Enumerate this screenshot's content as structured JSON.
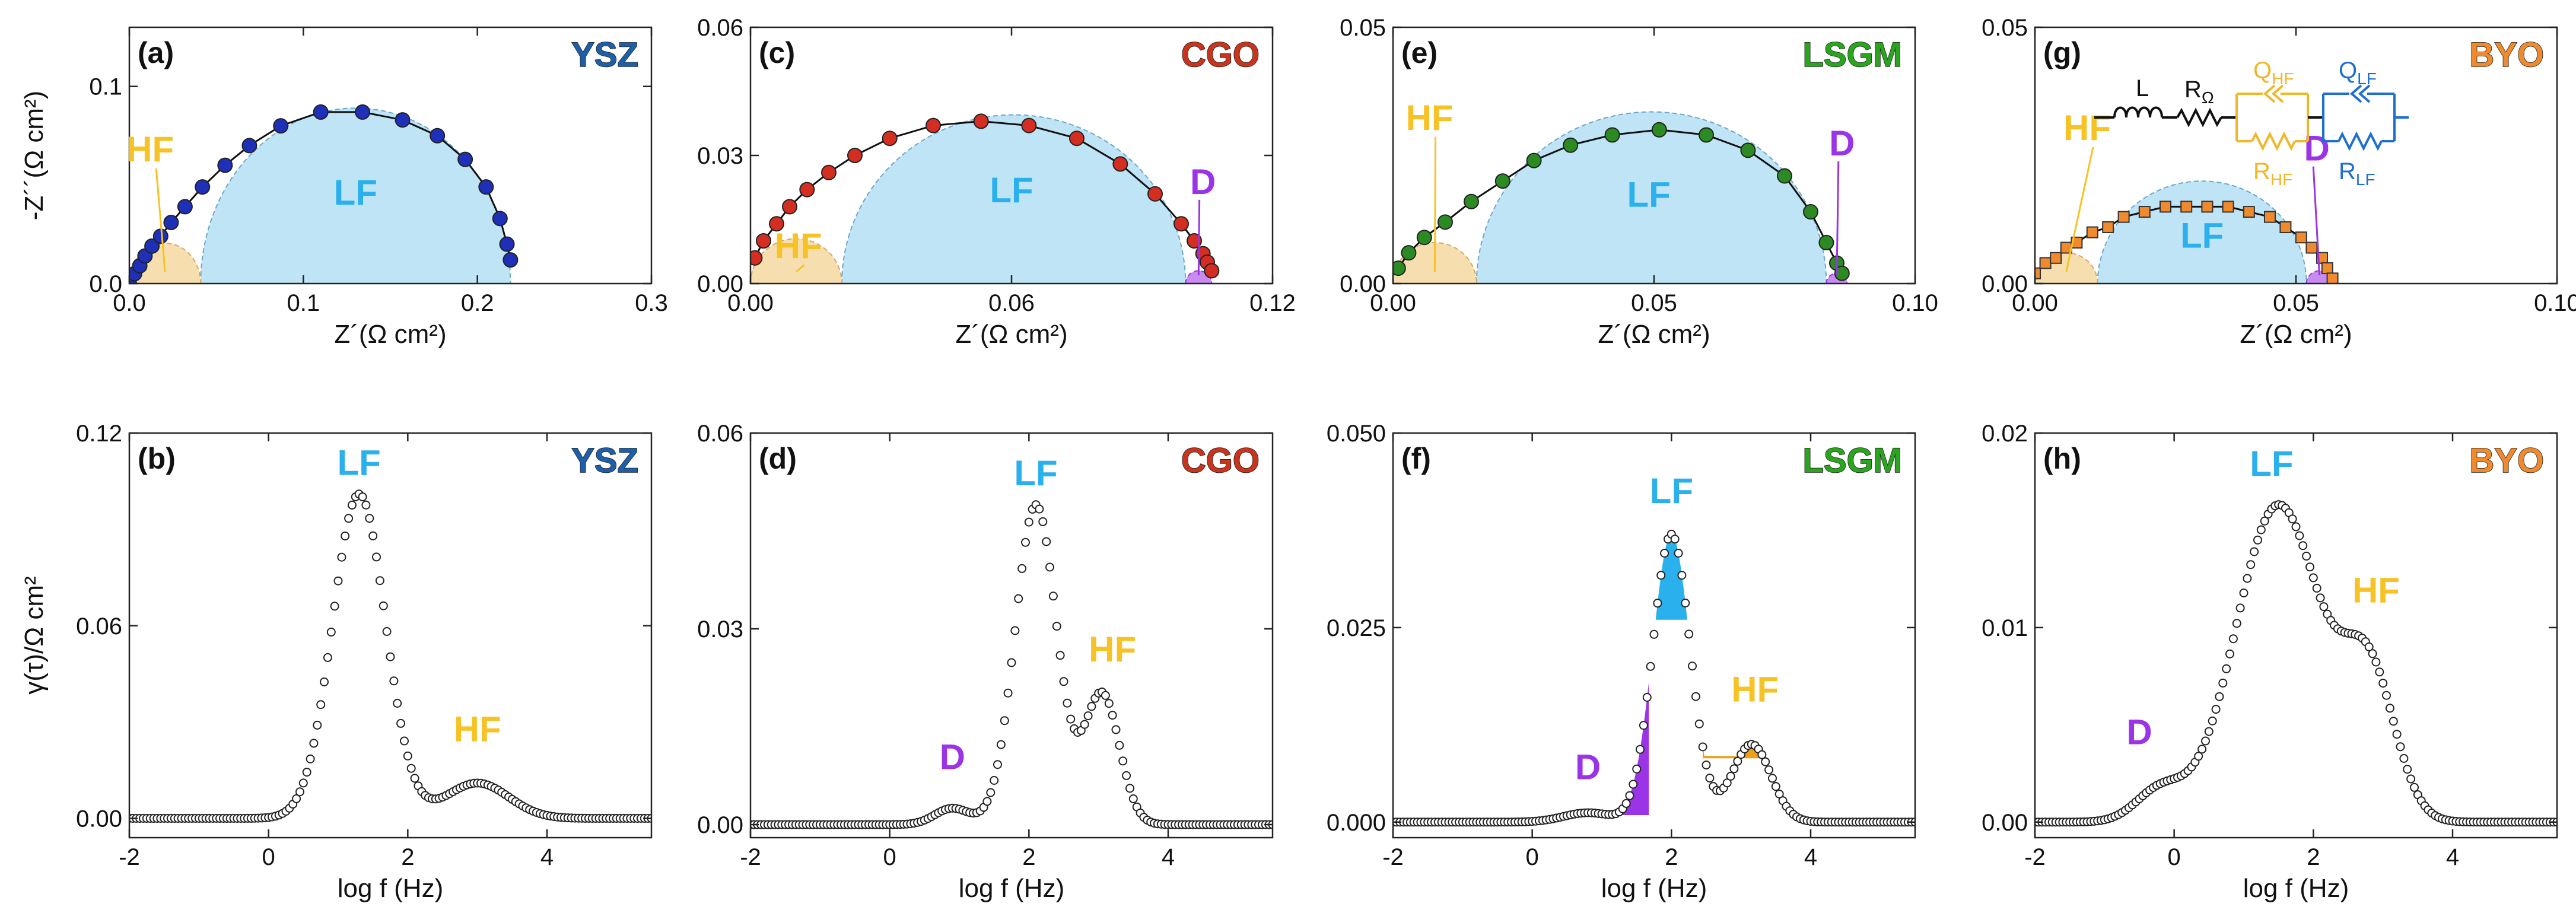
{
  "figure": {
    "colors": {
      "LF": "#2ab0ec",
      "HF": "#f7c224",
      "D": "#9a34e6",
      "YSZ": "#1d5fa8",
      "CGO": "#c9341c",
      "LSGM": "#2aa61e",
      "BYO": "#ef8a2e",
      "LF_fill": "#bfe4f6",
      "HF_fill": "#f7deae",
      "D_fill": "#c88cf0",
      "LSGM_peak_HF": "#eca016"
    },
    "circuit": {
      "L": "L",
      "R": "R",
      "R_sub": "Ω",
      "Q_HF": "Q",
      "Q_HF_sub": "HF",
      "R_HF": "R",
      "R_HF_sub": "HF",
      "Q_LF": "Q",
      "Q_LF_sub": "LF",
      "R_LF": "R",
      "R_LF_sub": "LF"
    }
  },
  "chart_data": [
    {
      "id": "a",
      "type": "scatter",
      "kind": "nyquist",
      "panel_label": "(a)",
      "material": "YSZ",
      "xlabel": "Z´(Ω cm²)",
      "ylabel": "-Z´´(Ω cm²)",
      "xlim": [
        0,
        0.3
      ],
      "ylim": [
        0,
        0.13
      ],
      "xticks": [
        "0.0",
        "0.1",
        "0.2",
        "0.3"
      ],
      "yticks": [
        "0.0",
        "0.1"
      ],
      "marker_color": "#1e2fb8",
      "hf_arc": [
        0.0,
        0.041
      ],
      "lf_arc": [
        0.041,
        0.219
      ],
      "d_arc": null,
      "x": [
        0.0,
        0.003,
        0.006,
        0.009,
        0.013,
        0.018,
        0.024,
        0.032,
        0.042,
        0.055,
        0.069,
        0.087,
        0.11,
        0.134,
        0.157,
        0.177,
        0.193,
        0.205,
        0.213,
        0.217,
        0.219
      ],
      "y": [
        0.0,
        0.005,
        0.009,
        0.014,
        0.019,
        0.024,
        0.031,
        0.039,
        0.049,
        0.06,
        0.07,
        0.08,
        0.087,
        0.087,
        0.083,
        0.075,
        0.063,
        0.049,
        0.033,
        0.02,
        0.012
      ],
      "annotations": [
        {
          "text": "HF",
          "x": 0.012,
          "y": 0.062,
          "color": "HF"
        },
        {
          "text": "LF",
          "x": 0.13,
          "y": 0.04,
          "color": "LF"
        }
      ]
    },
    {
      "id": "b",
      "type": "scatter",
      "kind": "drt",
      "panel_label": "(b)",
      "material": "YSZ",
      "xlabel": "log f (Hz)",
      "ylabel": "γ(τ)/Ω cm²",
      "xlim": [
        -2,
        5.5
      ],
      "ylim": [
        -0.006,
        0.12
      ],
      "xticks": [
        "-2",
        "0",
        "2",
        "4"
      ],
      "yticks": [
        "0.00",
        "0.06",
        "0.12"
      ],
      "peaks": [
        {
          "center": 1.3,
          "height": 0.101,
          "width": 0.38
        },
        {
          "center": 3.0,
          "height": 0.011,
          "width": 0.45
        }
      ],
      "annotations": [
        {
          "text": "LF",
          "x": 1.3,
          "y": 0.107,
          "color": "LF"
        },
        {
          "text": "HF",
          "x": 3.0,
          "y": 0.024,
          "color": "HF"
        }
      ]
    },
    {
      "id": "c",
      "type": "scatter",
      "kind": "nyquist",
      "panel_label": "(c)",
      "material": "CGO",
      "xlabel": "Z´(Ω cm²)",
      "ylabel": "",
      "xlim": [
        0,
        0.12
      ],
      "ylim": [
        0,
        0.06
      ],
      "xticks": [
        "0.00",
        "0.06",
        "0.12"
      ],
      "yticks": [
        "0.00",
        "0.03",
        "0.06"
      ],
      "marker_color": "#d42e22",
      "hf_arc": [
        0.0,
        0.021
      ],
      "lf_arc": [
        0.021,
        0.1
      ],
      "d_arc": [
        0.1,
        0.106
      ],
      "x": [
        0.001,
        0.003,
        0.006,
        0.009,
        0.013,
        0.018,
        0.024,
        0.032,
        0.042,
        0.053,
        0.064,
        0.075,
        0.085,
        0.093,
        0.099,
        0.102,
        0.104,
        0.105,
        0.106
      ],
      "y": [
        0.006,
        0.01,
        0.014,
        0.018,
        0.022,
        0.026,
        0.03,
        0.034,
        0.037,
        0.038,
        0.037,
        0.034,
        0.028,
        0.021,
        0.014,
        0.01,
        0.007,
        0.005,
        0.003
      ],
      "annotations": [
        {
          "text": "HF",
          "x": 0.011,
          "y": 0.006,
          "color": "HF"
        },
        {
          "text": "LF",
          "x": 0.06,
          "y": 0.019,
          "color": "LF"
        },
        {
          "text": "D",
          "x": 0.104,
          "y": 0.021,
          "color": "D"
        }
      ]
    },
    {
      "id": "d",
      "type": "scatter",
      "kind": "drt",
      "panel_label": "(d)",
      "material": "CGO",
      "xlabel": "log f (Hz)",
      "ylabel": "",
      "xlim": [
        -2,
        5.5
      ],
      "ylim": [
        -0.002,
        0.06
      ],
      "xticks": [
        "-2",
        "0",
        "2",
        "4"
      ],
      "yticks": [
        "0.00",
        "0.03",
        "0.06"
      ],
      "peaks": [
        {
          "center": 0.9,
          "height": 0.0025,
          "width": 0.25
        },
        {
          "center": 2.1,
          "height": 0.049,
          "width": 0.3
        },
        {
          "center": 3.05,
          "height": 0.02,
          "width": 0.25
        }
      ],
      "annotations": [
        {
          "text": "LF",
          "x": 2.1,
          "y": 0.052,
          "color": "LF"
        },
        {
          "text": "HF",
          "x": 3.2,
          "y": 0.025,
          "color": "HF"
        },
        {
          "text": "D",
          "x": 0.9,
          "y": 0.0085,
          "color": "D"
        }
      ]
    },
    {
      "id": "e",
      "type": "scatter",
      "kind": "nyquist",
      "panel_label": "(e)",
      "material": "LSGM",
      "xlabel": "Z´(Ω cm²)",
      "ylabel": "",
      "xlim": [
        0,
        0.1
      ],
      "ylim": [
        0,
        0.05
      ],
      "xticks": [
        "0.00",
        "0.05",
        "0.10"
      ],
      "yticks": [
        "0.00",
        "0.05"
      ],
      "marker_color": "#2b8a22",
      "hf_arc": [
        0.0,
        0.016
      ],
      "lf_arc": [
        0.016,
        0.083
      ],
      "d_arc": [
        0.083,
        0.087
      ],
      "x": [
        0.001,
        0.003,
        0.006,
        0.01,
        0.015,
        0.021,
        0.027,
        0.034,
        0.042,
        0.051,
        0.06,
        0.068,
        0.075,
        0.08,
        0.083,
        0.085,
        0.086
      ],
      "y": [
        0.003,
        0.006,
        0.009,
        0.012,
        0.016,
        0.02,
        0.024,
        0.027,
        0.029,
        0.03,
        0.029,
        0.026,
        0.021,
        0.014,
        0.008,
        0.004,
        0.002
      ],
      "annotations": [
        {
          "text": "HF",
          "x": 0.007,
          "y": 0.03,
          "color": "HF"
        },
        {
          "text": "LF",
          "x": 0.049,
          "y": 0.015,
          "color": "LF"
        },
        {
          "text": "D",
          "x": 0.086,
          "y": 0.025,
          "color": "D"
        }
      ]
    },
    {
      "id": "f",
      "type": "scatter",
      "kind": "drt",
      "panel_label": "(f)",
      "material": "LSGM",
      "xlabel": "log f (Hz)",
      "ylabel": "",
      "xlim": [
        -2,
        5.5
      ],
      "ylim": [
        -0.002,
        0.05
      ],
      "xticks": [
        "-2",
        "0",
        "2",
        "4"
      ],
      "yticks": [
        "0.000",
        "0.025",
        "0.050"
      ],
      "peaks": [
        {
          "center": 0.8,
          "height": 0.0012,
          "width": 0.35
        },
        {
          "center": 2.0,
          "height": 0.037,
          "width": 0.27
        },
        {
          "center": 3.15,
          "height": 0.01,
          "width": 0.28
        }
      ],
      "annotations": [
        {
          "text": "LF",
          "x": 2.0,
          "y": 0.041,
          "color": "LF"
        },
        {
          "text": "HF",
          "x": 3.2,
          "y": 0.0155,
          "color": "HF"
        },
        {
          "text": "D",
          "x": 0.8,
          "y": 0.0055,
          "color": "D"
        }
      ]
    },
    {
      "id": "g",
      "type": "scatter",
      "kind": "nyquist",
      "panel_label": "(g)",
      "material": "BYO",
      "xlabel": "Z´(Ω cm²)",
      "ylabel": "",
      "xlim": [
        0,
        0.1
      ],
      "ylim": [
        0,
        0.05
      ],
      "xticks": [
        "0.00",
        "0.05",
        "0.10"
      ],
      "yticks": [
        "0.00",
        "0.05"
      ],
      "marker_color": "#ef8a2e",
      "hf_arc": [
        0.0,
        0.012
      ],
      "lf_arc": [
        0.012,
        0.052
      ],
      "d_arc": [
        0.052,
        0.057
      ],
      "x": [
        0.0,
        0.002,
        0.004,
        0.006,
        0.008,
        0.011,
        0.014,
        0.017,
        0.021,
        0.025,
        0.029,
        0.033,
        0.037,
        0.041,
        0.045,
        0.048,
        0.051,
        0.053,
        0.055,
        0.056,
        0.057
      ],
      "y": [
        0.002,
        0.004,
        0.005,
        0.007,
        0.008,
        0.01,
        0.011,
        0.013,
        0.014,
        0.015,
        0.015,
        0.015,
        0.015,
        0.014,
        0.013,
        0.011,
        0.009,
        0.007,
        0.005,
        0.003,
        0.001
      ],
      "annotations": [
        {
          "text": "HF",
          "x": 0.01,
          "y": 0.028,
          "color": "HF"
        },
        {
          "text": "LF",
          "x": 0.032,
          "y": 0.007,
          "color": "LF"
        },
        {
          "text": "D",
          "x": 0.054,
          "y": 0.024,
          "color": "D"
        }
      ]
    },
    {
      "id": "h",
      "type": "scatter",
      "kind": "drt",
      "panel_label": "(h)",
      "material": "BYO",
      "xlabel": "log f (Hz)",
      "ylabel": "",
      "xlim": [
        -2,
        5.5
      ],
      "ylim": [
        -0.0008,
        0.02
      ],
      "xticks": [
        "-2",
        "0",
        "2",
        "4"
      ],
      "yticks": [
        "0.00",
        "0.01",
        "0.02"
      ],
      "peaks": [
        {
          "center": -0.2,
          "height": 0.0016,
          "width": 0.35
        },
        {
          "center": 1.5,
          "height": 0.0163,
          "width": 0.62
        },
        {
          "center": 2.8,
          "height": 0.0072,
          "width": 0.38
        }
      ],
      "annotations": [
        {
          "text": "LF",
          "x": 1.4,
          "y": 0.0178,
          "color": "LF"
        },
        {
          "text": "HF",
          "x": 2.9,
          "y": 0.0113,
          "color": "HF"
        },
        {
          "text": "D",
          "x": -0.5,
          "y": 0.004,
          "color": "D"
        }
      ]
    }
  ]
}
